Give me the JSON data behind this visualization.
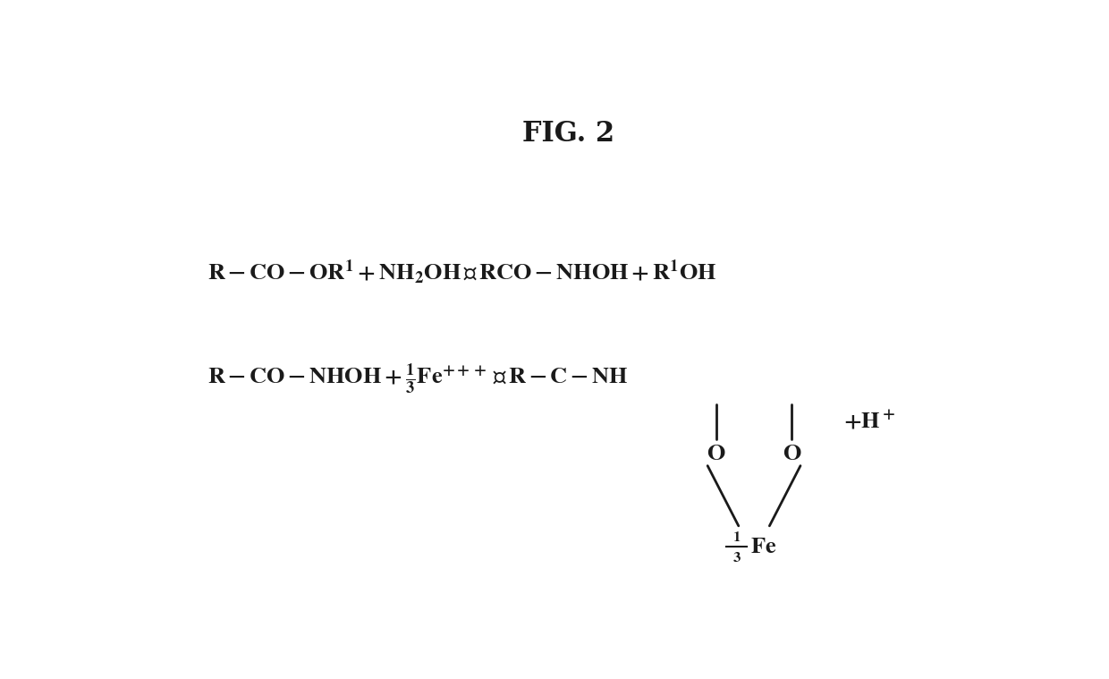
{
  "title": "FIG. 2",
  "bg_color": "#ffffff",
  "text_color": "#1a1a1a",
  "fig_width": 12.4,
  "fig_height": 7.59
}
